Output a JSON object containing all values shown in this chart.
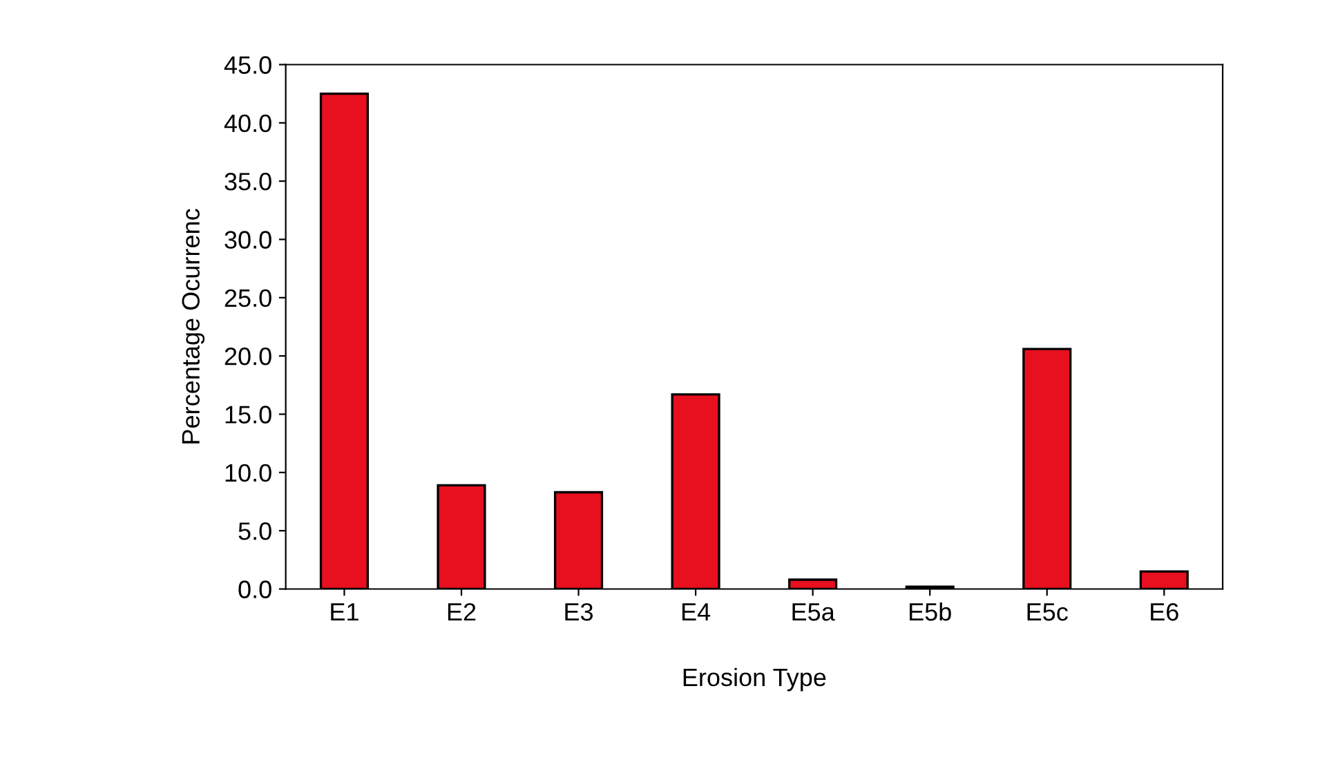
{
  "chart_data": {
    "type": "bar",
    "xlabel": "Erosion Type",
    "ylabel": "Percentage Ocurrenc",
    "categories": [
      "E1",
      "E2",
      "E3",
      "E4",
      "E5a",
      "E5b",
      "E5c",
      "E6"
    ],
    "values": [
      42.5,
      8.9,
      8.3,
      16.7,
      0.8,
      0.2,
      20.6,
      1.5
    ],
    "color": "#e8101e",
    "ylim": [
      0,
      45
    ],
    "yticks": [
      {
        "value": 0,
        "label": "0.0"
      },
      {
        "value": 5,
        "label": "5.0"
      },
      {
        "value": 10,
        "label": "10.0"
      },
      {
        "value": 15,
        "label": "15.0"
      },
      {
        "value": 20,
        "label": "20.0"
      },
      {
        "value": 25,
        "label": "25.0"
      },
      {
        "value": 30,
        "label": "30.0"
      },
      {
        "value": 35,
        "label": "35.0"
      },
      {
        "value": 40,
        "label": "40.0"
      },
      {
        "value": 45,
        "label": "45.0"
      }
    ],
    "grid": false
  }
}
